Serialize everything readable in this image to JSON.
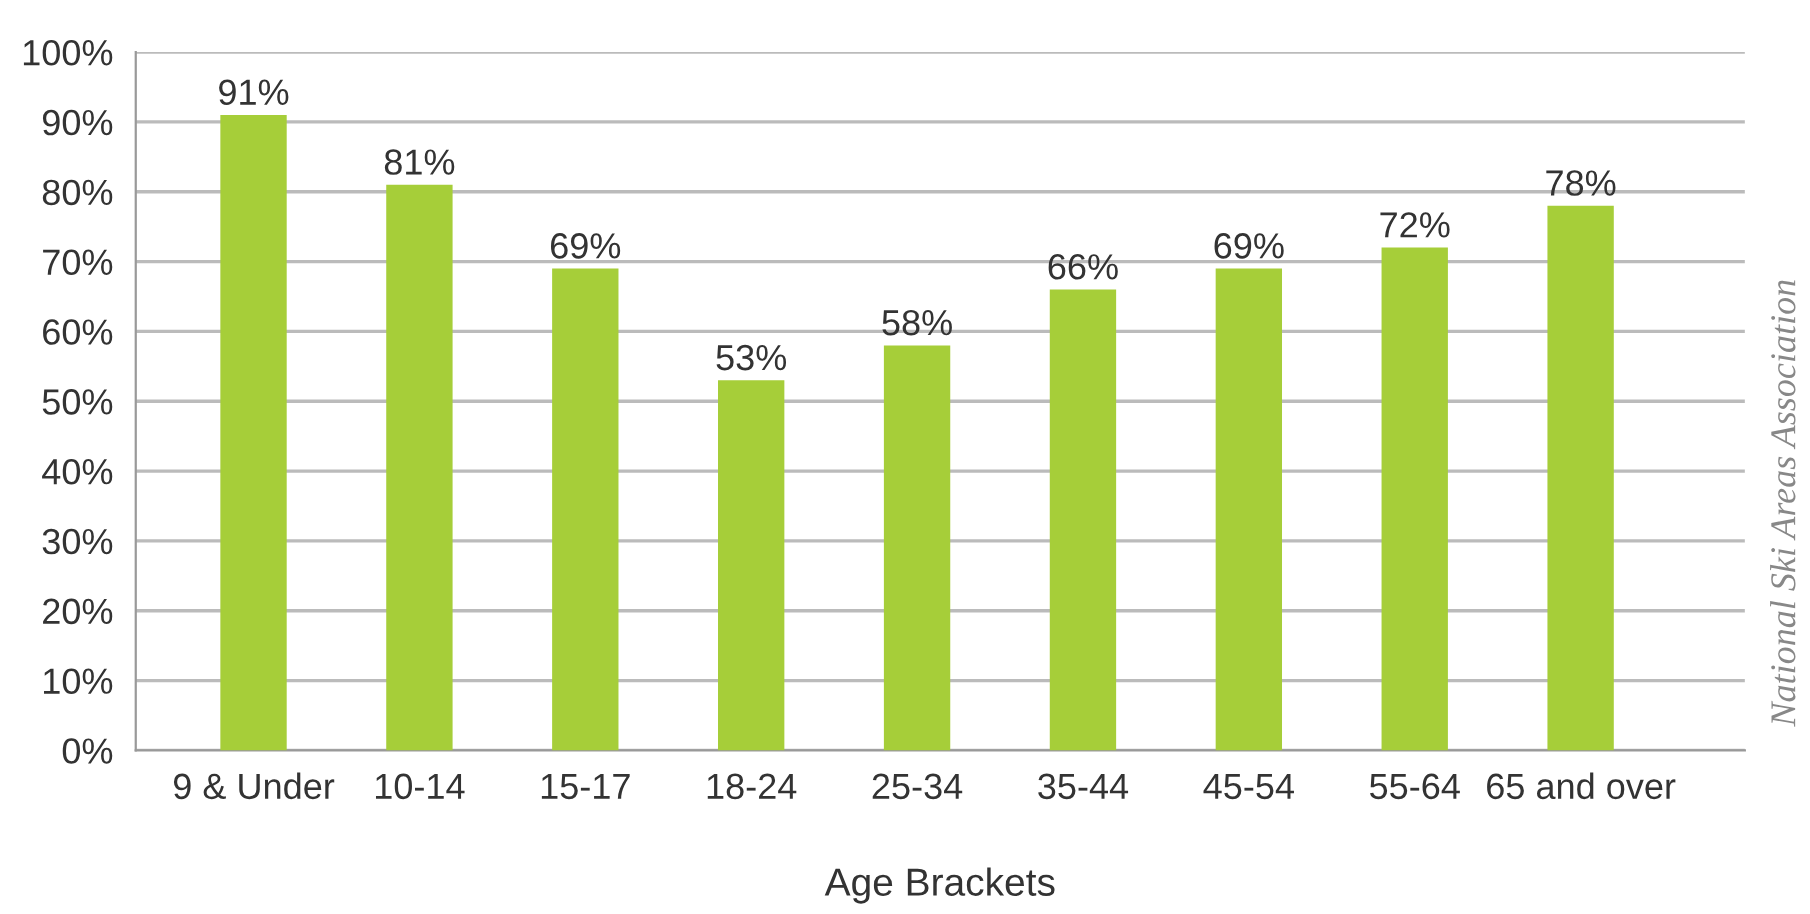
{
  "chart_data": {
    "type": "bar",
    "xlabel": "Age Brackets",
    "categories": [
      "9 & Under",
      "10-14",
      "15-17",
      "18-24",
      "25-34",
      "35-44",
      "45-54",
      "55-64",
      "65 and over"
    ],
    "values": [
      91,
      81,
      69,
      53,
      58,
      66,
      69,
      72,
      78
    ],
    "value_labels": [
      "91%",
      "81%",
      "69%",
      "53%",
      "58%",
      "66%",
      "69%",
      "72%",
      "78%"
    ],
    "color": "#a6ce39",
    "ylim": [
      0,
      100
    ],
    "yticks": [
      {
        "value": 0,
        "label": "0%"
      },
      {
        "value": 10,
        "label": "10%"
      },
      {
        "value": 20,
        "label": "20%"
      },
      {
        "value": 30,
        "label": "30%"
      },
      {
        "value": 40,
        "label": "40%"
      },
      {
        "value": 50,
        "label": "50%"
      },
      {
        "value": 60,
        "label": "60%"
      },
      {
        "value": 70,
        "label": "70%"
      },
      {
        "value": 80,
        "label": "80%"
      },
      {
        "value": 90,
        "label": "90%"
      },
      {
        "value": 100,
        "label": "100%"
      }
    ],
    "grid": "y",
    "annotations": [
      "National Ski Areas Association"
    ]
  }
}
